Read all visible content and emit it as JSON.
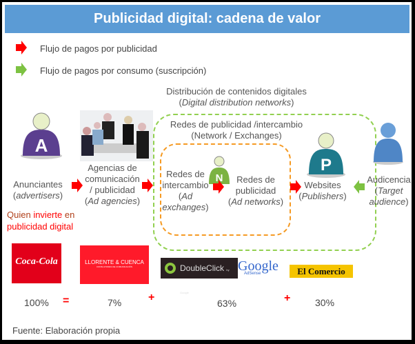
{
  "title": "Publicidad digital: cadena de valor",
  "legend": [
    {
      "label": "Flujo de pagos por publicidad",
      "color": "#ff0000"
    },
    {
      "label": "Flujo de pagos por consumo (suscripción)",
      "color": "#7dc242"
    }
  ],
  "groups": {
    "distribution": {
      "line1": "Distribución de contenidos digitales",
      "line2": "Digital distribution networks"
    },
    "networks": {
      "line1": "Redes de publicidad /intercambio",
      "line2": "(Network / Exchanges)"
    }
  },
  "nodes": {
    "advertisers": {
      "l1": "Anunciantes",
      "l2": "advertisers",
      "badge": "A"
    },
    "agencies": {
      "l1": "Agencias de",
      "l2": "comunicación",
      "l3": "/ publicidad",
      "l4": "Ad agencies"
    },
    "exchanges": {
      "l1": "Redes de",
      "l2": "intercambio",
      "l3": "Ad",
      "l4": "exchanges",
      "badge": "N"
    },
    "adnetworks": {
      "l1": "Redes de",
      "l2": "publicidad",
      "l3": "Ad networks"
    },
    "websites": {
      "l1": "Websites",
      "l2": "Publishers",
      "badge": "P"
    },
    "audience": {
      "l1": "Audicencia",
      "l2": "Target",
      "l3": "audience"
    }
  },
  "investor": {
    "p1": "Quien ",
    "p2": "invierte",
    "p3": " en",
    "line2": "publicidad digital"
  },
  "logos": {
    "coca": "Coca-Cola",
    "llorente": "LLORENTE & CUENCA",
    "llorente_sub": "CONSULTORES DE COMUNICACIÓN",
    "doubleclick": "DoubleClick",
    "doubleclick_sub": "by Google",
    "google": "Google",
    "google_sub": "AdSense",
    "comercio": "El Comercio"
  },
  "shares": {
    "total": "100%",
    "eq": "=",
    "agencies": "7%",
    "plus1": "+",
    "networks": "63%",
    "plus2": "+",
    "publishers": "30%"
  },
  "source": "Fuente: Elaboración propia"
}
